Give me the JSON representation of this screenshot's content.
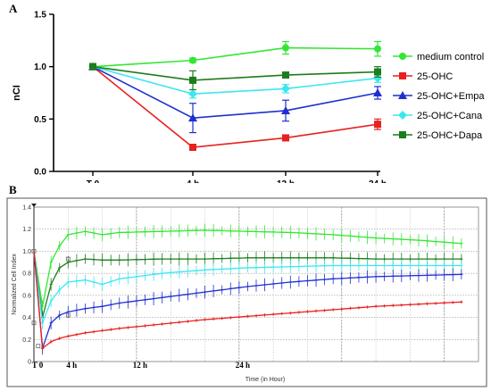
{
  "panel_a_letter": "A",
  "panel_b_letter": "B",
  "chart_data": [
    {
      "type": "line",
      "title": "",
      "xlabel": "",
      "ylabel": "nCI",
      "categories": [
        "T 0",
        "4 h",
        "12 h",
        "24 h"
      ],
      "ylim": [
        0,
        1.5
      ],
      "yticks": [
        "0.0",
        "0.5",
        "1.0",
        "1.5"
      ],
      "legend_position": "right",
      "series": [
        {
          "name": "medium control",
          "color": "#33e633",
          "marker": "circle",
          "values": [
            1.0,
            1.06,
            1.18,
            1.17
          ],
          "errors": [
            0,
            0.02,
            0.06,
            0.07
          ]
        },
        {
          "name": "25-OHC",
          "color": "#e8201f",
          "marker": "square",
          "values": [
            1.0,
            0.23,
            0.32,
            0.45
          ],
          "errors": [
            0,
            0.02,
            0.02,
            0.05
          ]
        },
        {
          "name": "25-OHC+Empa",
          "color": "#1f2fcf",
          "marker": "triangle",
          "values": [
            1.0,
            0.51,
            0.58,
            0.75
          ],
          "errors": [
            0,
            0.14,
            0.1,
            0.06
          ]
        },
        {
          "name": "25-OHC+Cana",
          "color": "#3ee6f0",
          "marker": "diamond",
          "values": [
            1.0,
            0.74,
            0.79,
            0.89
          ],
          "errors": [
            0,
            0.04,
            0.04,
            0.04
          ]
        },
        {
          "name": "25-OHC+Dapa",
          "color": "#1c7d1c",
          "marker": "square",
          "values": [
            1.0,
            0.87,
            0.92,
            0.95
          ],
          "errors": [
            0,
            0.09,
            0.02,
            0.05
          ]
        }
      ]
    },
    {
      "type": "line",
      "title": "",
      "xlabel": "Time (in Hour)",
      "ylabel": "Normalized Cell Index",
      "xlim": [
        0,
        52
      ],
      "ylim": [
        0,
        1.4
      ],
      "yticks": [
        "0",
        "0.2",
        "0.4",
        "0.6",
        "0.8",
        "1.0",
        "1.2",
        "1.4"
      ],
      "time_labels": [
        "T 0",
        "4 h",
        "12 h",
        "24 h"
      ],
      "grid": true,
      "series": [
        {
          "color": "#33e633",
          "points": [
            [
              0,
              1.0
            ],
            [
              1,
              0.5
            ],
            [
              2,
              0.9
            ],
            [
              3,
              1.05
            ],
            [
              4,
              1.15
            ],
            [
              6,
              1.18
            ],
            [
              8,
              1.15
            ],
            [
              10,
              1.17
            ],
            [
              15,
              1.18
            ],
            [
              20,
              1.19
            ],
            [
              25,
              1.18
            ],
            [
              30,
              1.17
            ],
            [
              35,
              1.15
            ],
            [
              40,
              1.12
            ],
            [
              45,
              1.1
            ],
            [
              50,
              1.07
            ]
          ]
        },
        {
          "color": "#1c7d1c",
          "points": [
            [
              0,
              1.0
            ],
            [
              1,
              0.4
            ],
            [
              2,
              0.7
            ],
            [
              3,
              0.85
            ],
            [
              4,
              0.9
            ],
            [
              6,
              0.93
            ],
            [
              8,
              0.92
            ],
            [
              10,
              0.92
            ],
            [
              15,
              0.93
            ],
            [
              20,
              0.93
            ],
            [
              25,
              0.94
            ],
            [
              30,
              0.94
            ],
            [
              35,
              0.94
            ],
            [
              40,
              0.93
            ],
            [
              45,
              0.93
            ],
            [
              50,
              0.93
            ]
          ]
        },
        {
          "color": "#3ee6f0",
          "points": [
            [
              0,
              1.0
            ],
            [
              1,
              0.35
            ],
            [
              2,
              0.55
            ],
            [
              3,
              0.65
            ],
            [
              4,
              0.72
            ],
            [
              6,
              0.74
            ],
            [
              8,
              0.7
            ],
            [
              10,
              0.75
            ],
            [
              15,
              0.8
            ],
            [
              20,
              0.83
            ],
            [
              25,
              0.85
            ],
            [
              30,
              0.86
            ],
            [
              35,
              0.87
            ],
            [
              40,
              0.87
            ],
            [
              45,
              0.87
            ],
            [
              50,
              0.87
            ]
          ]
        },
        {
          "color": "#1f2fcf",
          "points": [
            [
              0,
              1.0
            ],
            [
              1,
              0.12
            ],
            [
              2,
              0.35
            ],
            [
              3,
              0.42
            ],
            [
              4,
              0.45
            ],
            [
              6,
              0.48
            ],
            [
              8,
              0.5
            ],
            [
              10,
              0.53
            ],
            [
              15,
              0.58
            ],
            [
              20,
              0.63
            ],
            [
              25,
              0.68
            ],
            [
              30,
              0.72
            ],
            [
              35,
              0.75
            ],
            [
              40,
              0.77
            ],
            [
              45,
              0.78
            ],
            [
              50,
              0.79
            ]
          ]
        },
        {
          "color": "#e8201f",
          "points": [
            [
              0,
              1.0
            ],
            [
              1,
              0.12
            ],
            [
              2,
              0.18
            ],
            [
              3,
              0.21
            ],
            [
              4,
              0.23
            ],
            [
              6,
              0.26
            ],
            [
              8,
              0.28
            ],
            [
              10,
              0.3
            ],
            [
              15,
              0.34
            ],
            [
              20,
              0.38
            ],
            [
              25,
              0.41
            ],
            [
              30,
              0.44
            ],
            [
              35,
              0.47
            ],
            [
              40,
              0.5
            ],
            [
              45,
              0.52
            ],
            [
              50,
              0.54
            ]
          ]
        }
      ]
    }
  ]
}
